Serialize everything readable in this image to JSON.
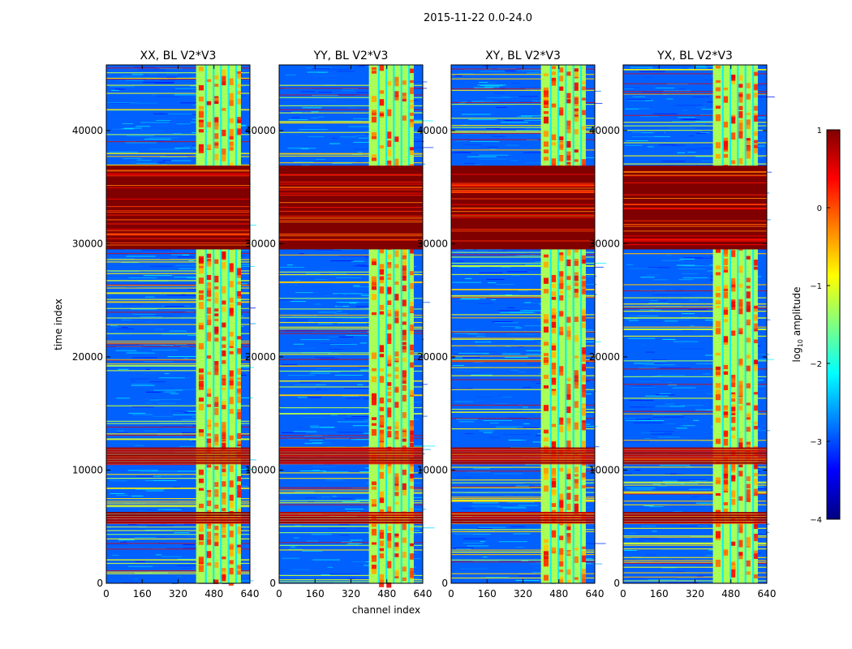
{
  "figure": {
    "title": "2015-11-22 0.0-24.0"
  },
  "chart_data": {
    "type": "heatmap",
    "x": {
      "label": "channel index",
      "min": 0,
      "max": 640,
      "ticks": [
        0,
        160,
        320,
        480,
        640
      ]
    },
    "y": {
      "label": "time index",
      "min": 0,
      "max": 45800,
      "ticks": [
        0,
        10000,
        20000,
        30000,
        40000
      ]
    },
    "colorbar": {
      "label_main": "log",
      "label_sub": "10",
      "label_rest": " amplitude",
      "min": -4,
      "max": 1,
      "ticks": [
        "1",
        "0",
        "−1",
        "−2",
        "−3",
        "−4"
      ],
      "tick_values": [
        1,
        0,
        -1,
        -2,
        -3,
        -4
      ],
      "stops": [
        "#000080",
        "#0000ff",
        "#0080ff",
        "#00ffff",
        "#80ff80",
        "#ffff00",
        "#ff8000",
        "#ff0000",
        "#800000"
      ]
    },
    "series": [
      {
        "name": "XX, BL V2*V3"
      },
      {
        "name": "YY, BL V2*V3"
      },
      {
        "name": "XY, BL V2*V3"
      },
      {
        "name": "YX, BL V2*V3"
      }
    ],
    "features": {
      "saturated_band_time": [
        29500,
        36900
      ],
      "strong_rfi_bands_time": [
        [
          10700,
          12000
        ],
        [
          5300,
          6300
        ]
      ],
      "rfi_channel_range": [
        400,
        600
      ],
      "value_ranges": {
        "background": -2.9,
        "rfi_channels": -1.3,
        "saturated": 1.0
      }
    }
  }
}
